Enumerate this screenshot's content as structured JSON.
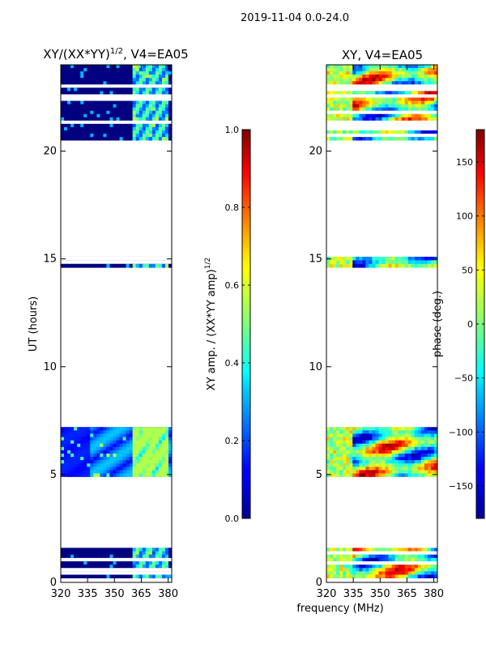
{
  "figure_title": "2019-11-04 0.0-24.0",
  "shared_xlabel": "frequency (MHz)",
  "colors": {
    "background_panel": "#ffffff",
    "data_low": "#00008f",
    "axis": "#000000"
  },
  "chart_data": [
    {
      "type": "heatmap",
      "title": "XY/(XX*YY)^1/2, V4=EA05",
      "title_main": "XY/(XX*YY)",
      "title_sup": "1/2",
      "title_tail": ", V4=EA05",
      "xlabel": "",
      "ylabel": "UT (hours)",
      "xlim": [
        320,
        382
      ],
      "ylim": [
        0,
        24
      ],
      "xticks": [
        320,
        335,
        350,
        365,
        380
      ],
      "yticks": [
        0,
        5,
        10,
        15,
        20
      ],
      "data_blocks_ut": [
        [
          0.2,
          1.6
        ],
        [
          4.9,
          7.2
        ],
        [
          14.6,
          15.1
        ],
        [
          20.5,
          24.0
        ]
      ],
      "colorbar": {
        "label_main": "XY amp. / (XX*YY amp)",
        "label_sup": "1/2",
        "range": [
          0.0,
          1.0
        ],
        "ticks": [
          "0.0",
          "0.2",
          "0.4",
          "0.6",
          "0.8",
          "1.0"
        ],
        "tick_values": [
          0.0,
          0.2,
          0.4,
          0.6,
          0.8,
          1.0
        ],
        "colormap": "jet"
      }
    },
    {
      "type": "heatmap",
      "title": "XY, V4=EA05",
      "xlabel": "frequency (MHz)",
      "ylabel": "",
      "xlim": [
        320,
        382
      ],
      "ylim": [
        0,
        24
      ],
      "xticks": [
        320,
        335,
        350,
        365,
        380
      ],
      "yticks": [
        0,
        5,
        10,
        15,
        20
      ],
      "data_blocks_ut": [
        [
          0.2,
          1.6
        ],
        [
          4.9,
          7.2
        ],
        [
          14.6,
          15.1
        ],
        [
          20.5,
          24.0
        ]
      ],
      "colorbar": {
        "label": "phase (deg.)",
        "range": [
          -180,
          180
        ],
        "ticks": [
          "−150",
          "−100",
          "−50",
          "0",
          "50",
          "100",
          "150"
        ],
        "tick_values": [
          -150,
          -100,
          -50,
          0,
          50,
          100,
          150
        ],
        "colormap": "jet"
      }
    }
  ]
}
